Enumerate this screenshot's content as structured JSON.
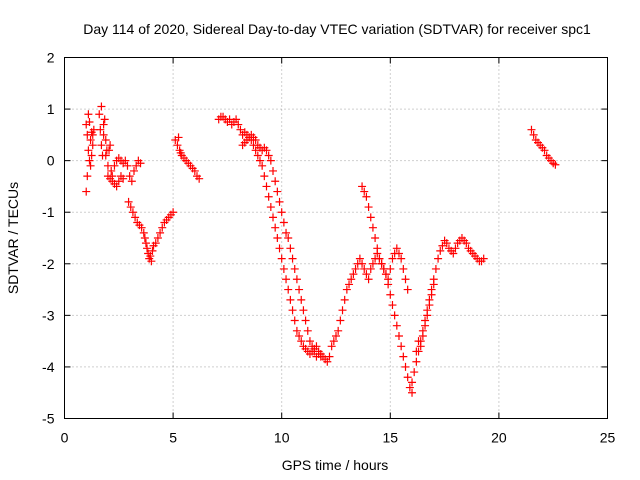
{
  "chart_data": {
    "type": "scatter",
    "title": "Day 114 of 2020, Sidereal Day-to-day VTEC variation (SDTVAR) for receiver spc1",
    "xlabel": "GPS time / hours",
    "ylabel": "SDTVAR / TECUs",
    "xlim": [
      0,
      25
    ],
    "ylim": [
      -5,
      2
    ],
    "xticks": [
      0,
      5,
      10,
      15,
      20,
      25
    ],
    "yticks": [
      -5,
      -4,
      -3,
      -2,
      -1,
      0,
      1,
      2
    ],
    "grid": true,
    "marker": "plus",
    "color": "#ff0000",
    "series": [
      {
        "x": [
          1.0,
          1.05,
          1.1,
          1.15,
          1.2,
          1.25,
          1.3,
          1.35,
          1.0,
          1.1,
          1.2,
          1.3,
          1.05,
          1.15,
          1.25
        ],
        "y": [
          0.7,
          0.5,
          0.2,
          0.0,
          -0.1,
          0.1,
          0.5,
          0.6,
          -0.6,
          0.9,
          0.4,
          0.3,
          -0.3,
          0.75,
          0.55
        ]
      },
      {
        "x": [
          1.6,
          1.65,
          1.7,
          1.75,
          1.8,
          1.85,
          1.9,
          1.95,
          2.0,
          2.05,
          2.1,
          2.15,
          2.2,
          2.3,
          2.4,
          2.5,
          2.6,
          2.7,
          2.8,
          2.9,
          3.0,
          3.1,
          3.2,
          3.3,
          3.4,
          3.5,
          1.7,
          1.8,
          1.9,
          2.0,
          2.1,
          2.2,
          2.3,
          2.4,
          2.5,
          2.6,
          2.7
        ],
        "y": [
          0.9,
          0.6,
          0.3,
          0.1,
          0.5,
          0.8,
          0.4,
          0.2,
          -0.1,
          0.2,
          0.3,
          -0.2,
          -0.3,
          -0.1,
          0.0,
          0.05,
          0.0,
          -0.05,
          0.0,
          -0.1,
          -0.3,
          -0.4,
          -0.2,
          -0.1,
          0.0,
          -0.05,
          1.05,
          0.7,
          0.1,
          -0.3,
          -0.35,
          -0.4,
          -0.45,
          -0.5,
          -0.4,
          -0.3,
          -0.35
        ]
      },
      {
        "x": [
          2.95,
          3.05,
          3.15,
          3.25,
          3.35,
          3.45,
          3.55,
          3.65,
          3.7,
          3.75,
          3.8,
          3.85,
          3.9,
          3.95,
          4.0,
          4.05,
          4.1,
          4.2,
          4.3,
          4.4,
          4.5,
          4.6,
          4.7,
          4.8,
          4.9,
          5.0
        ],
        "y": [
          -0.8,
          -0.9,
          -1.0,
          -1.1,
          -1.2,
          -1.25,
          -1.3,
          -1.4,
          -1.5,
          -1.6,
          -1.7,
          -1.8,
          -1.9,
          -1.85,
          -1.95,
          -1.75,
          -1.65,
          -1.6,
          -1.5,
          -1.4,
          -1.3,
          -1.2,
          -1.15,
          -1.1,
          -1.05,
          -1.0
        ]
      },
      {
        "x": [
          5.1,
          5.2,
          5.3,
          5.4,
          5.5,
          5.6,
          5.7,
          5.8,
          5.9,
          6.0,
          6.1,
          6.2,
          5.25,
          5.35
        ],
        "y": [
          0.4,
          0.3,
          0.2,
          0.1,
          0.05,
          0.0,
          -0.05,
          -0.1,
          -0.15,
          -0.2,
          -0.3,
          -0.35,
          0.45,
          0.15
        ]
      },
      {
        "x": [
          7.1,
          7.2,
          7.3,
          7.4,
          7.5,
          7.6,
          7.7,
          7.8,
          7.9,
          8.0,
          8.1,
          8.2,
          8.3,
          8.4,
          8.5,
          8.6,
          8.7,
          8.8,
          8.9,
          9.0,
          9.1,
          9.2,
          9.3,
          9.4,
          9.5,
          9.6,
          9.7,
          9.8,
          9.9,
          10.0,
          10.1,
          10.2,
          10.3,
          10.4,
          10.5,
          10.6,
          10.7,
          10.8,
          10.9,
          11.0,
          11.1,
          11.2,
          11.3,
          11.4,
          11.5,
          11.6,
          11.7,
          11.8,
          11.9,
          12.0,
          12.1,
          12.2,
          12.3,
          12.4,
          12.5,
          12.6,
          12.7,
          12.8,
          12.9,
          13.0,
          13.1,
          13.2,
          13.3,
          13.4,
          13.5,
          13.6,
          13.7,
          13.8,
          13.9,
          14.0,
          14.1,
          14.2,
          14.3,
          14.4,
          14.5,
          14.6,
          14.7,
          14.8,
          14.9,
          15.0,
          15.1,
          15.2,
          15.3,
          15.4,
          15.5,
          15.6,
          15.7,
          15.8,
          15.9,
          16.0
        ],
        "y": [
          0.8,
          0.85,
          0.85,
          0.8,
          0.75,
          0.8,
          0.7,
          0.75,
          0.8,
          0.7,
          0.6,
          0.5,
          0.55,
          0.5,
          0.45,
          0.4,
          0.3,
          0.2,
          0.1,
          0.0,
          -0.1,
          -0.3,
          -0.5,
          -0.7,
          -0.9,
          -1.1,
          -1.3,
          -1.5,
          -1.7,
          -1.9,
          -2.1,
          -2.3,
          -2.5,
          -2.7,
          -2.9,
          -3.1,
          -3.3,
          -3.4,
          -3.5,
          -3.6,
          -3.65,
          -3.7,
          -3.75,
          -3.7,
          -3.65,
          -3.6,
          -3.7,
          -3.75,
          -3.8,
          -3.85,
          -3.9,
          -3.8,
          -3.6,
          -3.5,
          -3.4,
          -3.3,
          -3.1,
          -2.9,
          -2.7,
          -2.5,
          -2.4,
          -2.3,
          -2.2,
          -2.1,
          -2.0,
          -1.9,
          -2.0,
          -2.1,
          -2.2,
          -2.3,
          -2.1,
          -2.0,
          -1.9,
          -1.8,
          -1.9,
          -2.0,
          -2.1,
          -2.2,
          -2.4,
          -2.6,
          -2.8,
          -3.0,
          -3.2,
          -3.4,
          -3.6,
          -3.8,
          -4.0,
          -4.2,
          -4.4,
          -4.5
        ]
      },
      {
        "x": [
          8.2,
          8.3,
          8.4,
          8.5,
          8.6,
          8.7,
          8.8,
          8.9,
          9.0,
          9.1,
          9.2,
          9.3,
          9.4,
          9.5,
          9.6,
          9.7,
          9.8,
          9.9,
          10.0,
          10.1,
          10.2,
          10.3,
          10.4,
          10.5,
          10.6,
          10.7,
          10.8,
          10.9,
          11.0,
          11.1,
          11.2,
          11.3,
          11.4,
          11.5,
          11.6,
          11.7,
          11.8
        ],
        "y": [
          0.3,
          0.35,
          0.4,
          0.45,
          0.5,
          0.45,
          0.4,
          0.3,
          0.25,
          0.2,
          0.25,
          0.2,
          0.1,
          0.0,
          -0.2,
          -0.4,
          -0.6,
          -0.8,
          -1.0,
          -1.2,
          -1.4,
          -1.5,
          -1.7,
          -1.9,
          -2.1,
          -2.3,
          -2.5,
          -2.7,
          -2.9,
          -3.1,
          -3.3,
          -3.5,
          -3.6,
          -3.7,
          -3.8,
          -3.75,
          -3.8
        ]
      },
      {
        "x": [
          13.7,
          13.8,
          13.9,
          14.0,
          14.1,
          14.2,
          14.3,
          14.4,
          14.5,
          14.6,
          14.7,
          14.8,
          14.9,
          15.0,
          15.1,
          15.2,
          15.3,
          15.4,
          15.5,
          15.6,
          15.7,
          15.8
        ],
        "y": [
          -0.5,
          -0.6,
          -0.7,
          -0.9,
          -1.1,
          -1.3,
          -1.5,
          -1.7,
          -1.9,
          -2.0,
          -2.1,
          -2.2,
          -2.3,
          -2.1,
          -1.9,
          -1.8,
          -1.7,
          -1.8,
          -1.9,
          -2.1,
          -2.3,
          -2.5
        ]
      },
      {
        "x": [
          16.0,
          16.1,
          16.2,
          16.3,
          16.4,
          16.5,
          16.6,
          16.7,
          16.8,
          16.9,
          17.0,
          17.1,
          17.2,
          17.3,
          17.4,
          17.5,
          17.6,
          17.7,
          17.8,
          17.9,
          18.0,
          18.1,
          18.2,
          18.3,
          18.4,
          18.5,
          18.6,
          18.7,
          18.8,
          18.9,
          19.0,
          19.1,
          19.2,
          19.3,
          16.2,
          16.3,
          16.4,
          16.5,
          16.6,
          16.7,
          16.8,
          16.9,
          17.0
        ],
        "y": [
          -4.3,
          -4.1,
          -3.9,
          -3.7,
          -3.5,
          -3.3,
          -3.1,
          -2.9,
          -2.7,
          -2.5,
          -2.3,
          -2.1,
          -1.9,
          -1.75,
          -1.65,
          -1.55,
          -1.6,
          -1.7,
          -1.75,
          -1.8,
          -1.7,
          -1.6,
          -1.55,
          -1.5,
          -1.55,
          -1.6,
          -1.7,
          -1.75,
          -1.8,
          -1.85,
          -1.9,
          -1.95,
          -1.95,
          -1.9,
          -3.7,
          -3.5,
          -3.6,
          -3.4,
          -3.2,
          -3.0,
          -2.8,
          -2.6,
          -2.4
        ]
      },
      {
        "x": [
          21.5,
          21.6,
          21.7,
          21.8,
          21.9,
          22.0,
          22.1,
          22.2,
          22.3,
          22.4,
          22.5,
          22.6
        ],
        "y": [
          0.6,
          0.5,
          0.4,
          0.35,
          0.3,
          0.25,
          0.2,
          0.1,
          0.05,
          0.0,
          -0.05,
          -0.08
        ]
      }
    ]
  }
}
